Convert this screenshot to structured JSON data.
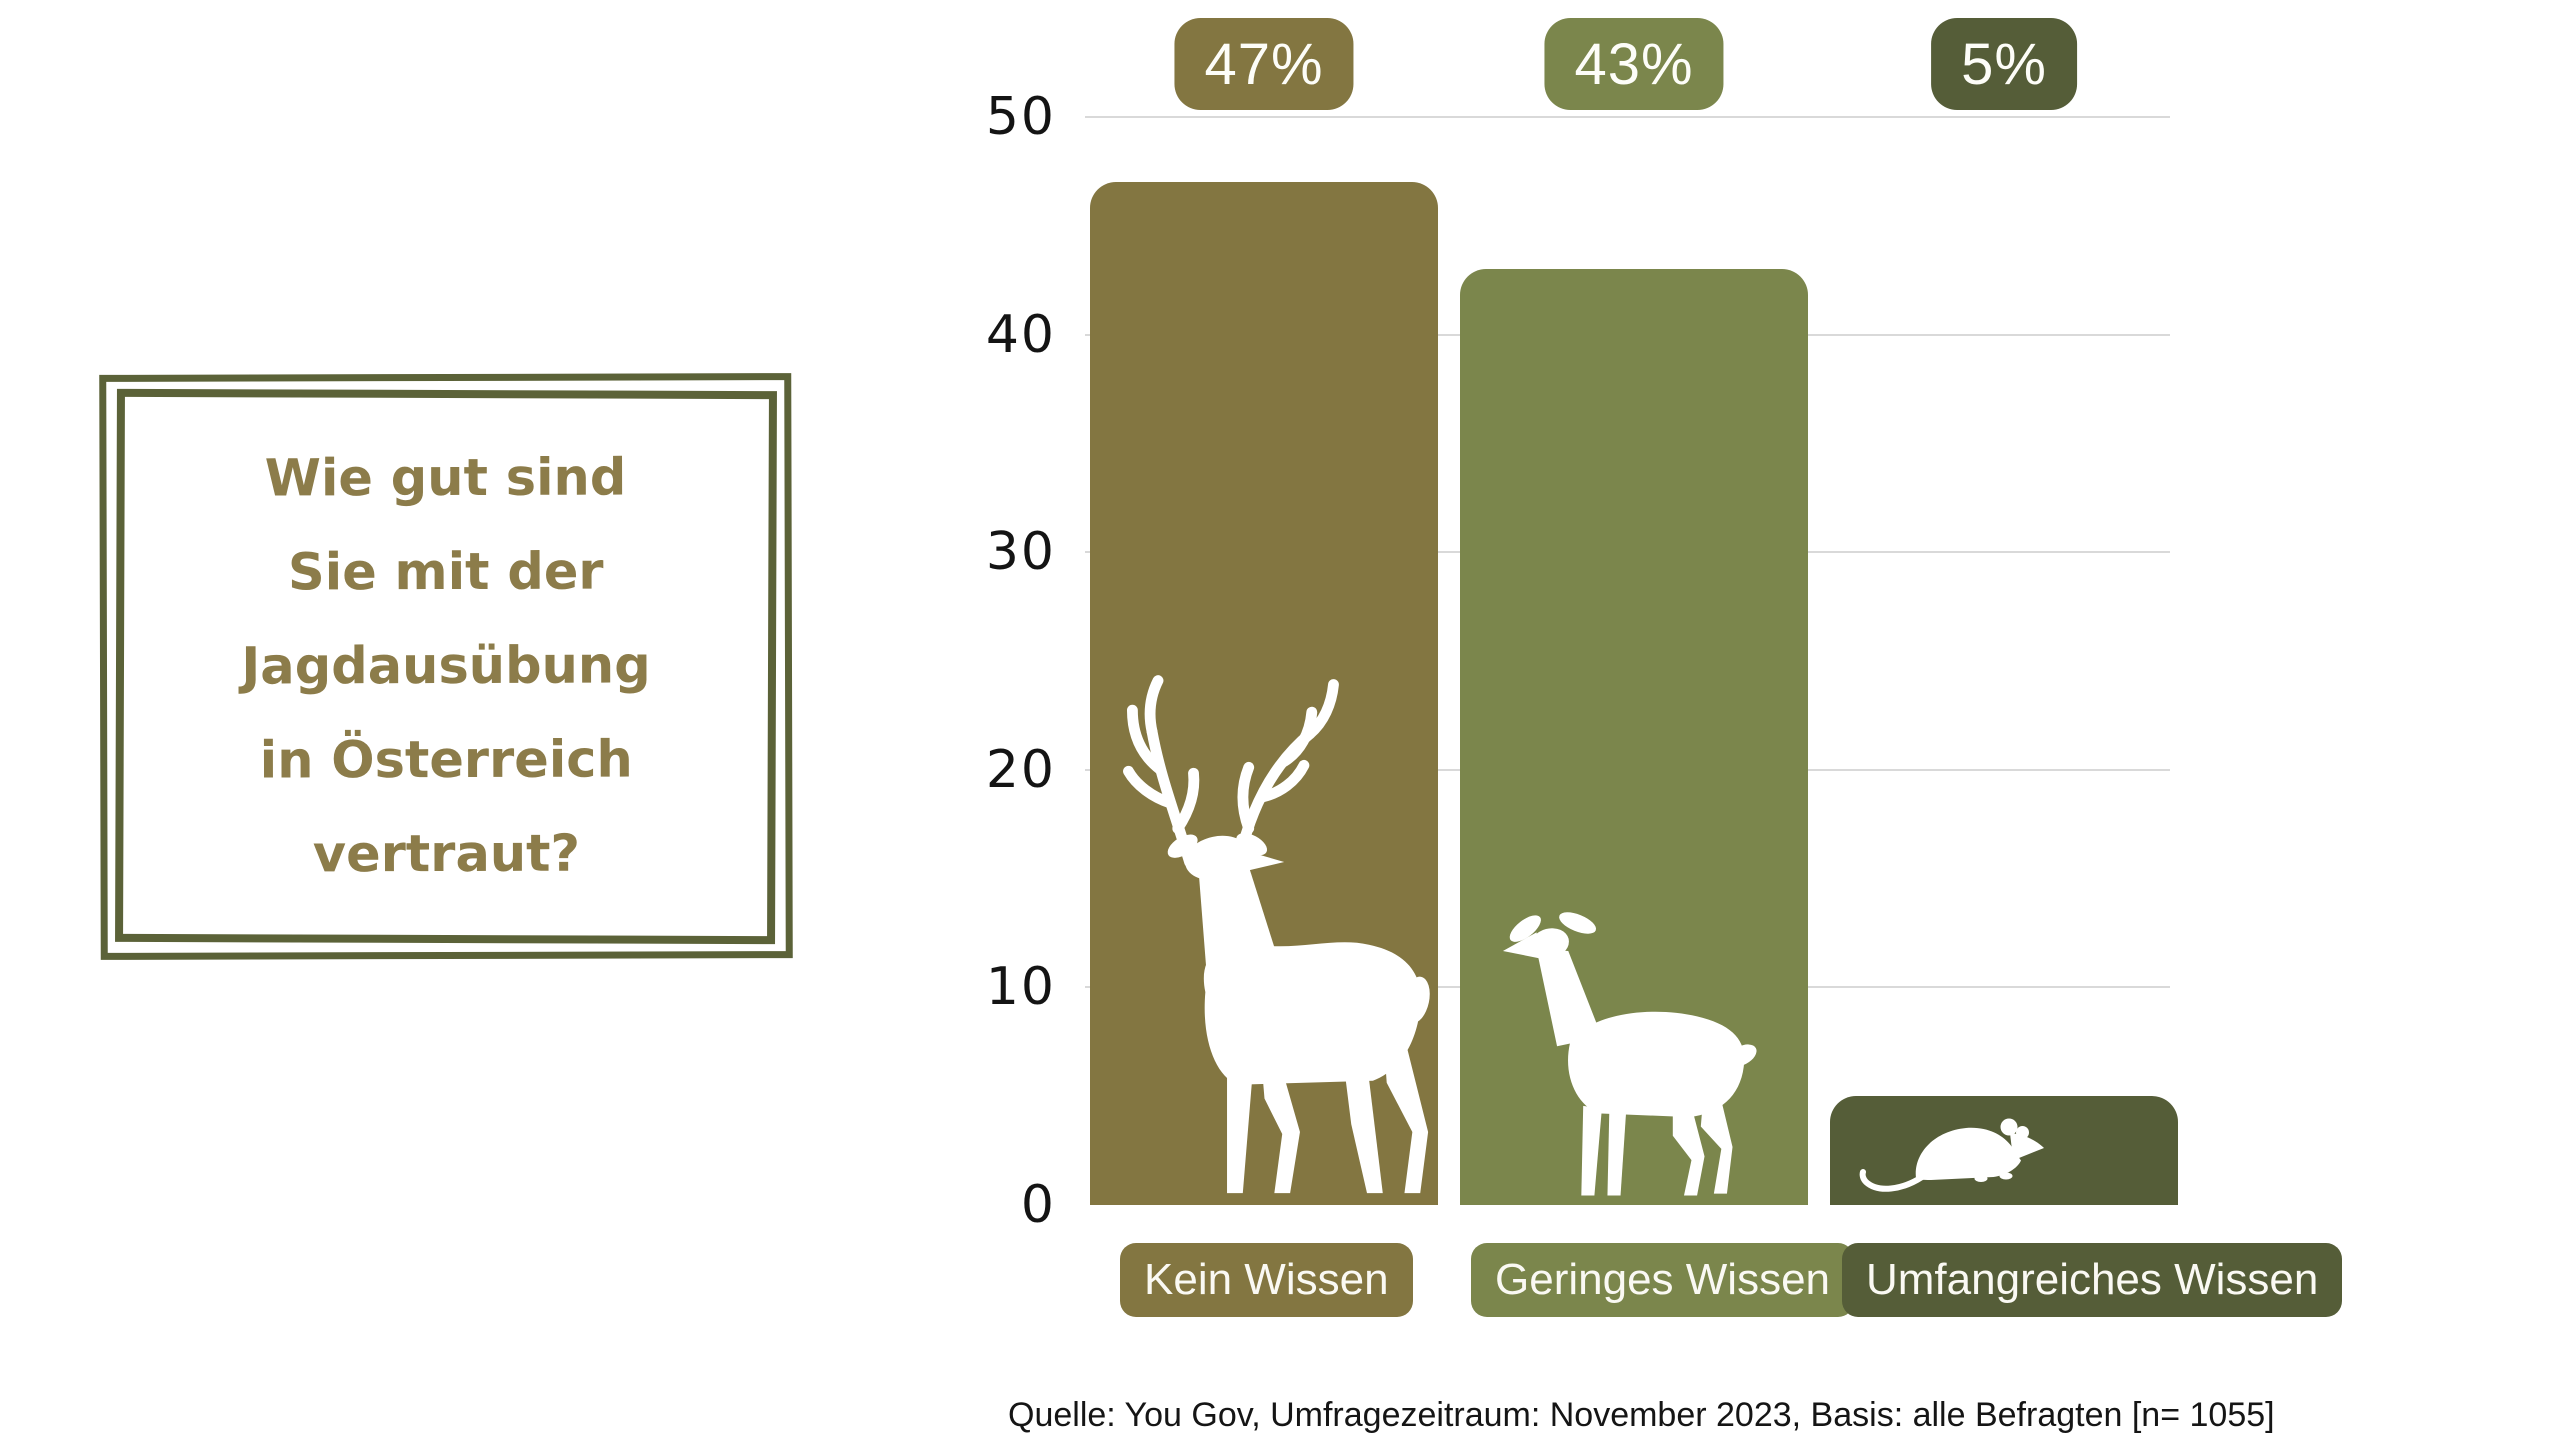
{
  "question": {
    "lines": [
      "Wie gut sind",
      "Sie mit der",
      "Jagdausübung",
      "in Österreich",
      "vertraut?"
    ],
    "text": "Wie gut sind Sie mit der Jagdausübung in Österreich vertraut?",
    "text_color": "#8c7c4a",
    "frame_color": "#5b6238"
  },
  "source_note": "Quelle: You Gov, Umfragezeitraum: November 2023, Basis: alle Befragten [n= 1055]",
  "chart_data": {
    "type": "bar",
    "title": "",
    "xlabel": "",
    "ylabel": "",
    "categories": [
      "Kein Wissen",
      "Geringes Wissen",
      "Umfangreiches Wissen"
    ],
    "values": [
      47,
      43,
      5
    ],
    "value_labels": [
      "47%",
      "43%",
      "5%"
    ],
    "bar_colors": [
      "#837641",
      "#7b864c",
      "#555d38"
    ],
    "icons": [
      "stag-icon",
      "doe-icon",
      "mouse-icon"
    ],
    "ylim": [
      0,
      50
    ],
    "yticks": [
      0,
      10,
      20,
      30,
      40,
      50
    ],
    "grid": "horizontal",
    "gridline_color": "#d9d9d9",
    "tick_text_color": "#141414",
    "badge_text_color": "#ffffff",
    "legend": "none"
  },
  "background_color": "#ffffff"
}
